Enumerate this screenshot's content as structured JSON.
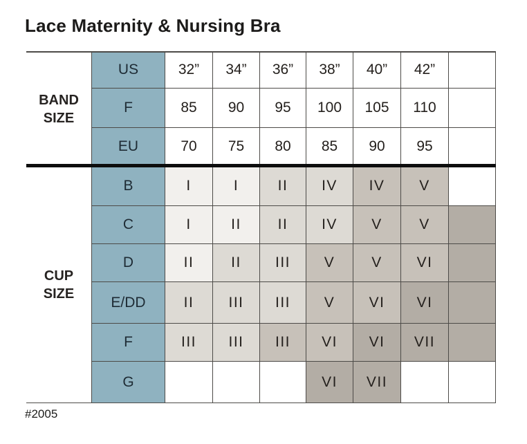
{
  "title": "Lace Maternity & Nursing Bra",
  "footnote": "#2005",
  "colors": {
    "header_blue": "#8fb2c0",
    "header_text": "#1e2b34",
    "grid_line": "#4c4a47",
    "section_divider": "#0d0d0d",
    "text": "#24201d",
    "shades": [
      "#ffffff",
      "#f2f0ed",
      "#dddad4",
      "#c7c1b9",
      "#b3ada5"
    ]
  },
  "columns": [
    "32in",
    "34in",
    "36in",
    "38in",
    "40in",
    "42in",
    "extra"
  ],
  "band_section": {
    "label": "BAND SIZE",
    "rows": [
      {
        "header": "US",
        "values": [
          "32”",
          "34”",
          "36”",
          "38”",
          "40”",
          "42”",
          ""
        ]
      },
      {
        "header": "F",
        "values": [
          "85",
          "90",
          "95",
          "100",
          "105",
          "110",
          ""
        ]
      },
      {
        "header": "EU",
        "values": [
          "70",
          "75",
          "80",
          "85",
          "90",
          "95",
          ""
        ]
      }
    ]
  },
  "cup_section": {
    "label": "CUP SIZE",
    "rows": [
      {
        "header": "B",
        "values": [
          "I",
          "I",
          "II",
          "IV",
          "IV",
          "V",
          ""
        ],
        "shades": [
          1,
          1,
          2,
          2,
          3,
          3,
          0
        ]
      },
      {
        "header": "C",
        "values": [
          "I",
          "II",
          "II",
          "IV",
          "V",
          "V",
          ""
        ],
        "shades": [
          1,
          1,
          2,
          2,
          3,
          3,
          4
        ]
      },
      {
        "header": "D",
        "values": [
          "II",
          "II",
          "III",
          "V",
          "V",
          "VI",
          ""
        ],
        "shades": [
          1,
          2,
          2,
          3,
          3,
          3,
          4
        ]
      },
      {
        "header": "E/DD",
        "values": [
          "II",
          "III",
          "III",
          "V",
          "VI",
          "VI",
          ""
        ],
        "shades": [
          2,
          2,
          2,
          3,
          3,
          4,
          4
        ]
      },
      {
        "header": "F",
        "values": [
          "III",
          "III",
          "III",
          "VI",
          "VI",
          "VII",
          ""
        ],
        "shades": [
          2,
          2,
          3,
          3,
          4,
          4,
          4
        ]
      },
      {
        "header": "G",
        "values": [
          "",
          "",
          "",
          "VI",
          "VII",
          "",
          ""
        ],
        "shades": [
          0,
          0,
          0,
          4,
          4,
          0,
          0
        ]
      }
    ]
  }
}
